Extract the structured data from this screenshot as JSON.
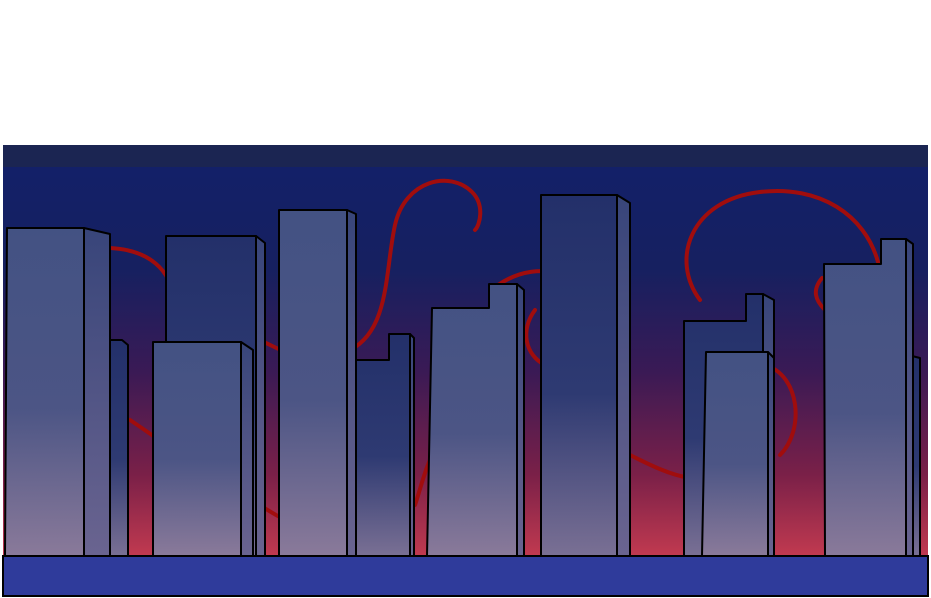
{
  "scene": {
    "background_color": "#ffffff",
    "sky_colors": {
      "top_band": "#1b2552",
      "upper": "#12206a",
      "middle": "#4a1a4e",
      "horizon": "#c23a50"
    },
    "tentacle_color": "#a00d0d",
    "building_colors": {
      "light_face": "#435283",
      "dark_face": "#23306a",
      "bottom_tint": "#8a7a9a",
      "side": "#8a8fb3",
      "outline": "#000000"
    },
    "ground_color": "#2f3b9b"
  }
}
